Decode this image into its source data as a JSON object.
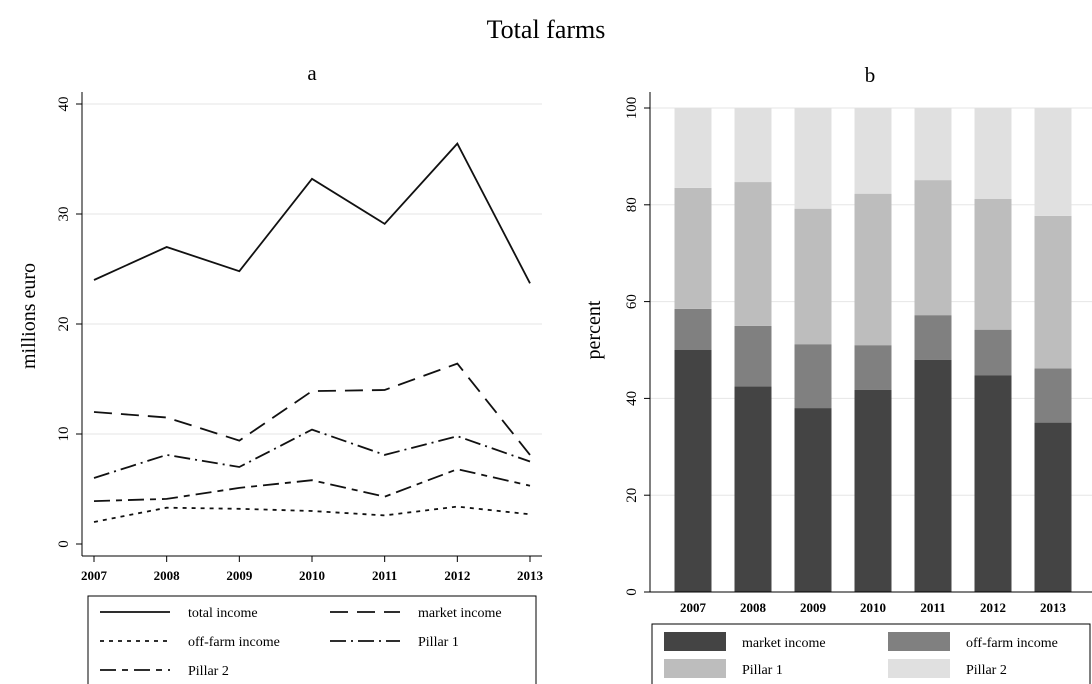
{
  "figure": {
    "title": "Total farms"
  },
  "chart_data": [
    {
      "type": "line",
      "title": "a",
      "xlabel": "",
      "ylabel": "millions euro",
      "x": [
        2007,
        2008,
        2009,
        2010,
        2011,
        2012,
        2013
      ],
      "ylim": [
        0,
        40
      ],
      "yticks": [
        0,
        10,
        20,
        30,
        40
      ],
      "grid": true,
      "legend_position": "bottom",
      "series": [
        {
          "name": "total income",
          "style": "solid",
          "values": [
            24.0,
            27.0,
            24.8,
            33.2,
            29.1,
            36.4,
            23.7
          ]
        },
        {
          "name": "market income",
          "style": "long-dash",
          "values": [
            12.0,
            11.5,
            9.4,
            13.9,
            14.0,
            16.4,
            8.1
          ]
        },
        {
          "name": "off-farm income",
          "style": "short-dash",
          "values": [
            2.0,
            3.3,
            3.2,
            3.0,
            2.6,
            3.4,
            2.7
          ]
        },
        {
          "name": "Pillar 1",
          "style": "long-dash-dot",
          "values": [
            6.0,
            8.1,
            7.0,
            10.4,
            8.1,
            9.8,
            7.5
          ]
        },
        {
          "name": "Pillar 2",
          "style": "long-dash-short-dash",
          "values": [
            3.9,
            4.1,
            5.1,
            5.8,
            4.3,
            6.8,
            5.3
          ]
        }
      ]
    },
    {
      "type": "bar",
      "stacked": true,
      "title": "b",
      "xlabel": "",
      "ylabel": "percent",
      "categories": [
        "2007",
        "2008",
        "2009",
        "2010",
        "2011",
        "2012",
        "2013"
      ],
      "ylim": [
        0,
        100
      ],
      "yticks": [
        0,
        20,
        40,
        60,
        80,
        100
      ],
      "grid": true,
      "legend_position": "bottom",
      "series": [
        {
          "name": "market income",
          "color": "#444444",
          "values": [
            50.0,
            42.5,
            38.0,
            41.8,
            48.0,
            44.8,
            35.0
          ]
        },
        {
          "name": "off-farm income",
          "color": "#808080",
          "values": [
            8.5,
            12.5,
            13.2,
            9.2,
            9.2,
            9.4,
            11.2
          ]
        },
        {
          "name": "Pillar 1",
          "color": "#bdbdbd",
          "values": [
            25.0,
            29.7,
            28.0,
            31.3,
            27.9,
            27.0,
            31.5
          ]
        },
        {
          "name": "Pillar 2",
          "color": "#e0e0e0",
          "values": [
            16.5,
            15.3,
            20.8,
            17.7,
            14.9,
            18.8,
            22.3
          ]
        }
      ]
    }
  ]
}
